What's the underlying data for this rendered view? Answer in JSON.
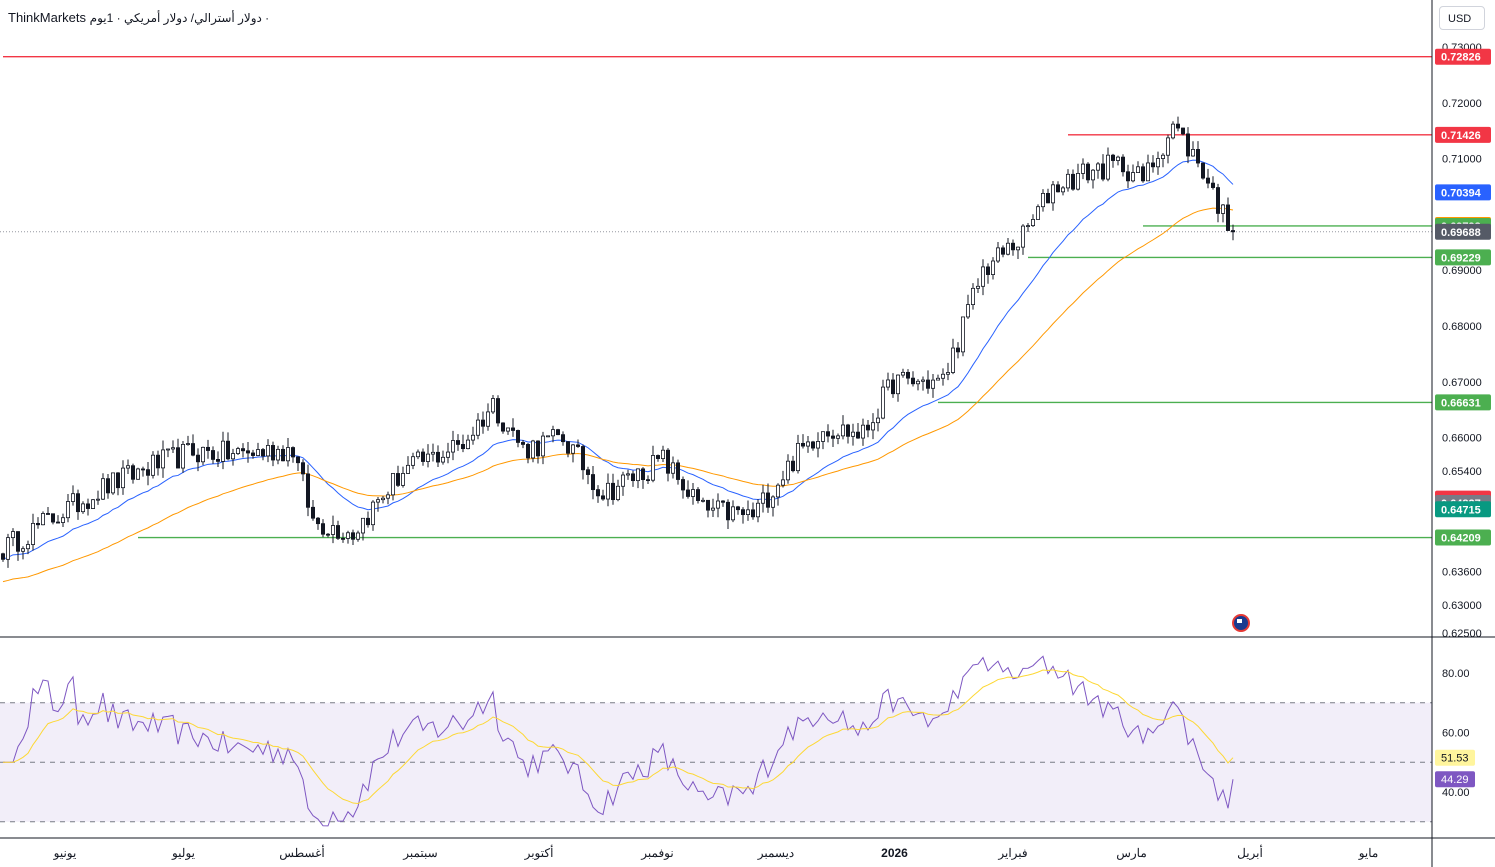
{
  "header": {
    "broker": "ThinkMarkets",
    "symbol": "دولار أسترالي/ دولار أمريكي · 1يوم ·"
  },
  "currency_button": "USD",
  "price_scale": {
    "ticks": [
      "0.73000",
      "0.72000",
      "0.71000",
      "0.69000",
      "0.68000",
      "0.67000",
      "0.66000",
      "0.65400",
      "0.63600",
      "0.63000",
      "0.62500"
    ],
    "badges": [
      {
        "label": "0.72826",
        "color": "#f23645"
      },
      {
        "label": "0.71426",
        "color": "#f23645"
      },
      {
        "label": "0.70394",
        "color": "#2962ff"
      },
      {
        "label": "0.69811",
        "color": "#ff9800"
      },
      {
        "label": "0.69793",
        "color": "#4caf50"
      },
      {
        "label": "0.69688",
        "color": "#555a66"
      },
      {
        "label": "0.69229",
        "color": "#4caf50"
      },
      {
        "label": "0.66631",
        "color": "#4caf50"
      },
      {
        "label": "0.64907",
        "color": "#f23645"
      },
      {
        "label": "0.64827",
        "color": "#787b86"
      },
      {
        "label": "0.64715",
        "color": "#089981"
      },
      {
        "label": "0.64209",
        "color": "#4caf50"
      }
    ]
  },
  "rsi_scale": {
    "ticks": [
      "80.00",
      "60.00",
      "40.00"
    ],
    "badges": [
      {
        "label": "51.53",
        "color": "#fff59d",
        "text": "#131722"
      },
      {
        "label": "44.29",
        "color": "#7e57c2",
        "text": "#ffffff"
      }
    ]
  },
  "time_axis": [
    "يونيو",
    "يوليو",
    "أغسطس",
    "سبتمبر",
    "أكتوبر",
    "نوفمبر",
    "ديسمبر",
    "2026",
    "فبراير",
    "مارس",
    "أبريل",
    "مايو"
  ],
  "horizontal_levels": [
    {
      "price": 0.72826,
      "color": "#f23645",
      "from_index": 0
    },
    {
      "price": 0.71426,
      "color": "#f23645",
      "from_index": 213
    },
    {
      "price": 0.69793,
      "color": "#4caf50",
      "from_index": 228
    },
    {
      "price": 0.69229,
      "color": "#4caf50",
      "from_index": 205
    },
    {
      "price": 0.66631,
      "color": "#4caf50",
      "from_index": 187
    },
    {
      "price": 0.64209,
      "color": "#4caf50",
      "from_index": 27
    }
  ],
  "chart_data": {
    "type": "candlestick",
    "timeframe": "1D",
    "price_range": [
      0.625,
      0.735
    ],
    "last_close": 0.69688,
    "waypoints": [
      [
        0,
        0.64
      ],
      [
        7,
        0.644
      ],
      [
        20,
        0.651
      ],
      [
        30,
        0.655
      ],
      [
        38,
        0.6575
      ],
      [
        46,
        0.657
      ],
      [
        58,
        0.658
      ],
      [
        62,
        0.645
      ],
      [
        70,
        0.643
      ],
      [
        80,
        0.654
      ],
      [
        92,
        0.659
      ],
      [
        98,
        0.666
      ],
      [
        104,
        0.658
      ],
      [
        112,
        0.66
      ],
      [
        120,
        0.65
      ],
      [
        132,
        0.656
      ],
      [
        140,
        0.647
      ],
      [
        150,
        0.646
      ],
      [
        158,
        0.656
      ],
      [
        164,
        0.662
      ],
      [
        172,
        0.6605
      ],
      [
        178,
        0.67
      ],
      [
        188,
        0.67
      ],
      [
        196,
        0.69
      ],
      [
        204,
        0.696
      ],
      [
        210,
        0.705
      ],
      [
        218,
        0.708
      ],
      [
        224,
        0.709
      ],
      [
        228,
        0.706
      ],
      [
        234,
        0.716
      ],
      [
        240,
        0.708
      ],
      [
        244,
        0.7
      ],
      [
        246,
        0.6969
      ]
    ],
    "ema_fast_label": "0.70394",
    "ema_slow_label": "0.69811",
    "rsi": {
      "range": [
        25,
        90
      ],
      "band": [
        30,
        70
      ],
      "mid": 50,
      "last": 44.29,
      "signal_last": 51.53
    }
  }
}
